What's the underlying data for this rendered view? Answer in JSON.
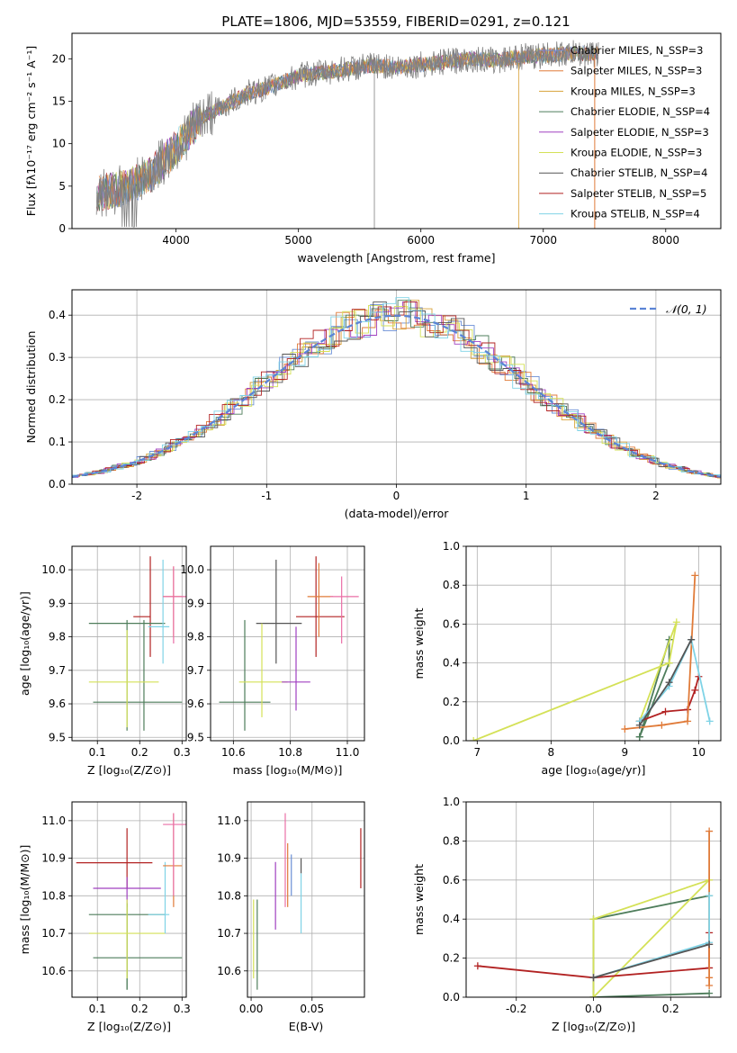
{
  "figure": {
    "title": "PLATE=1806, MJD=53559, FIBERID=0291, z=0.121"
  },
  "chart_data": [
    {
      "id": "spectrum",
      "type": "line",
      "xlabel": "wavelength [Angstrom, rest frame]",
      "ylabel": "Flux [fλ10⁻¹⁷ erg cm⁻² s⁻¹ A⁻¹]",
      "xlim": [
        3150,
        8450
      ],
      "ylim": [
        0,
        23
      ],
      "xticks": [
        4000,
        5000,
        6000,
        7000,
        8000
      ],
      "yticks": [
        0,
        5,
        10,
        15,
        20
      ],
      "legend_position": "top-right",
      "series": [
        {
          "name": "Chabrier MILES, N_SSP=3",
          "color": "#6b8fd6"
        },
        {
          "name": "Salpeter MILES, N_SSP=3",
          "color": "#e07b39"
        },
        {
          "name": "Kroupa MILES, N_SSP=3",
          "color": "#d8a23a"
        },
        {
          "name": "Chabrier ELODIE, N_SSP=4",
          "color": "#4e7d5b"
        },
        {
          "name": "Salpeter ELODIE, N_SSP=3",
          "color": "#a040c0"
        },
        {
          "name": "Kroupa ELODIE, N_SSP=3",
          "color": "#d4e157"
        },
        {
          "name": "Chabrier STELIB, N_SSP=4",
          "color": "#555555"
        },
        {
          "name": "Salpeter STELIB, N_SSP=5",
          "color": "#b22222"
        },
        {
          "name": "Kroupa STELIB, N_SSP=4",
          "color": "#7fd3e6"
        }
      ],
      "data_trend": {
        "x": [
          3400,
          3600,
          3800,
          4000,
          4200,
          4400,
          4600,
          4800,
          5000,
          5200,
          5400,
          5600,
          5800,
          6000,
          6200,
          6400,
          6600,
          6800,
          7000,
          7200
        ],
        "y": [
          4.3,
          4.8,
          6.5,
          9.5,
          13.0,
          14.5,
          16.0,
          16.8,
          18.0,
          18.4,
          18.8,
          19.2,
          19.0,
          19.3,
          19.6,
          20.0,
          19.8,
          20.2,
          20.4,
          20.6
        ]
      }
    },
    {
      "id": "residuals",
      "type": "line",
      "xlabel": "(data-model)/error",
      "ylabel": "Normed distribution",
      "xlim": [
        -2.5,
        2.5
      ],
      "ylim": [
        0,
        0.46
      ],
      "xticks": [
        -2,
        -1,
        0,
        1,
        2
      ],
      "yticks": [
        0.0,
        0.1,
        0.2,
        0.3,
        0.4
      ],
      "grid": true,
      "reference_curve": {
        "name": "𝒩(0, 1)",
        "mean": 0,
        "sigma": 1,
        "color": "#5b84d6"
      },
      "legend_position": "top-right"
    },
    {
      "id": "age_vs_Z",
      "type": "scatter",
      "xlabel": "Z [log₁₀(Z/Z⊙)]",
      "ylabel": "age  [log₁₀(age/yr)]",
      "xlim": [
        0.04,
        0.31
      ],
      "ylim": [
        9.49,
        10.07
      ],
      "xticks": [
        0.1,
        0.2,
        0.3
      ],
      "yticks": [
        9.5,
        9.6,
        9.7,
        9.8,
        9.9,
        10.0
      ],
      "grid": true,
      "points": [
        {
          "x": 0.225,
          "y": 9.86,
          "xerr": [
            0.185,
            0.225
          ],
          "yerr": [
            9.74,
            10.04
          ],
          "color": "#b22222"
        },
        {
          "x": 0.17,
          "y": 9.84,
          "xerr": [
            0.08,
            0.26
          ],
          "yerr": [
            9.52,
            9.85
          ],
          "color": "#4e7d5b"
        },
        {
          "x": 0.21,
          "y": 9.605,
          "xerr": [
            0.09,
            0.3
          ],
          "yerr": [
            9.52,
            9.85
          ],
          "color": "#4e7d5b"
        },
        {
          "x": 0.17,
          "y": 9.665,
          "xerr": [
            0.08,
            0.245
          ],
          "yerr": [
            9.53,
            9.82
          ],
          "color": "#d4e157"
        },
        {
          "x": 0.255,
          "y": 9.83,
          "xerr": [
            0.22,
            0.27
          ],
          "yerr": [
            9.72,
            10.03
          ],
          "color": "#7fd3e6"
        },
        {
          "x": 0.28,
          "y": 9.92,
          "xerr": [
            0.255,
            0.3
          ],
          "yerr": [
            9.8,
            10.01
          ],
          "color": "#e07b39"
        },
        {
          "x": 0.28,
          "y": 9.92,
          "xerr": [
            0.255,
            0.31
          ],
          "yerr": [
            9.78,
            10.01
          ],
          "color": "#ea6fa6"
        }
      ]
    },
    {
      "id": "age_vs_mass",
      "type": "scatter",
      "xlabel": "mass [log₁₀(M/M⊙)]",
      "ylabel": "",
      "xlim": [
        10.52,
        11.06
      ],
      "ylim": [
        9.49,
        10.07
      ],
      "xticks": [
        10.6,
        10.8,
        11.0
      ],
      "yticks": [
        9.5,
        9.6,
        9.7,
        9.8,
        9.9,
        10.0
      ],
      "grid": true,
      "points": [
        {
          "x": 10.89,
          "y": 9.86,
          "xerr": [
            10.82,
            10.99
          ],
          "yerr": [
            9.74,
            10.04
          ],
          "color": "#b22222"
        },
        {
          "x": 10.75,
          "y": 9.84,
          "xerr": [
            10.68,
            10.84
          ],
          "yerr": [
            9.72,
            10.03
          ],
          "color": "#555555"
        },
        {
          "x": 10.64,
          "y": 9.605,
          "xerr": [
            10.55,
            10.73
          ],
          "yerr": [
            9.52,
            9.85
          ],
          "color": "#4e7d5b"
        },
        {
          "x": 10.7,
          "y": 9.665,
          "xerr": [
            10.62,
            10.79
          ],
          "yerr": [
            9.56,
            9.84
          ],
          "color": "#d4e157"
        },
        {
          "x": 10.82,
          "y": 9.665,
          "xerr": [
            10.77,
            10.87
          ],
          "yerr": [
            9.58,
            9.83
          ],
          "color": "#a040c0"
        },
        {
          "x": 10.9,
          "y": 9.92,
          "xerr": [
            10.86,
            10.95
          ],
          "yerr": [
            9.8,
            10.02
          ],
          "color": "#e07b39"
        },
        {
          "x": 10.98,
          "y": 9.92,
          "xerr": [
            10.94,
            11.04
          ],
          "yerr": [
            9.78,
            9.98
          ],
          "color": "#ea6fa6"
        }
      ]
    },
    {
      "id": "weight_vs_age",
      "type": "line",
      "xlabel": "age  [log₁₀(age/yr)]",
      "ylabel": "mass weight",
      "xlim": [
        6.85,
        10.3
      ],
      "ylim": [
        0,
        1.0
      ],
      "xticks": [
        7,
        8,
        9,
        10
      ],
      "yticks": [
        0.0,
        0.2,
        0.4,
        0.6,
        0.8,
        1.0
      ],
      "grid": true,
      "series": [
        {
          "color": "#4e7d5b",
          "x": [
            9.2,
            9.6,
            9.6,
            9.2
          ],
          "y": [
            0.02,
            0.52,
            0.4,
            0.02
          ]
        },
        {
          "color": "#d4e157",
          "x": [
            6.95,
            9.6,
            9.7,
            9.2
          ],
          "y": [
            0.0,
            0.4,
            0.61,
            0.1
          ]
        },
        {
          "color": "#b22222",
          "x": [
            9.2,
            9.55,
            9.85,
            9.95,
            10.0
          ],
          "y": [
            0.1,
            0.15,
            0.16,
            0.26,
            0.33
          ]
        },
        {
          "color": "#e07b39",
          "x": [
            9.0,
            9.5,
            9.85,
            9.95
          ],
          "y": [
            0.06,
            0.08,
            0.1,
            0.85
          ]
        },
        {
          "color": "#7fd3e6",
          "x": [
            9.2,
            9.6,
            9.9,
            10.15
          ],
          "y": [
            0.1,
            0.28,
            0.52,
            0.1
          ]
        },
        {
          "color": "#555555",
          "x": [
            9.2,
            9.6,
            9.9
          ],
          "y": [
            0.08,
            0.3,
            0.52
          ]
        }
      ]
    },
    {
      "id": "mass_vs_Z",
      "type": "scatter",
      "xlabel": "Z [log₁₀(Z/Z⊙)]",
      "ylabel": "mass [log₁₀(M/M⊙)]",
      "xlim": [
        0.04,
        0.31
      ],
      "ylim": [
        10.53,
        11.05
      ],
      "xticks": [
        0.1,
        0.2,
        0.3
      ],
      "yticks": [
        10.6,
        10.7,
        10.8,
        10.9,
        11.0
      ],
      "grid": true,
      "points": [
        {
          "x": 0.17,
          "y": 10.888,
          "xerr": [
            0.05,
            0.23
          ],
          "yerr": [
            10.82,
            10.98
          ],
          "color": "#b22222"
        },
        {
          "x": 0.17,
          "y": 10.82,
          "xerr": [
            0.09,
            0.25
          ],
          "yerr": [
            10.77,
            10.85
          ],
          "color": "#a040c0"
        },
        {
          "x": 0.17,
          "y": 10.75,
          "xerr": [
            0.08,
            0.26
          ],
          "yerr": [
            10.55,
            10.78
          ],
          "color": "#4e7d5b"
        },
        {
          "x": 0.17,
          "y": 10.635,
          "xerr": [
            0.09,
            0.3
          ],
          "yerr": [
            10.55,
            10.78
          ],
          "color": "#4e7d5b"
        },
        {
          "x": 0.17,
          "y": 10.7,
          "xerr": [
            0.08,
            0.26
          ],
          "yerr": [
            10.58,
            10.79
          ],
          "color": "#d4e157"
        },
        {
          "x": 0.26,
          "y": 10.75,
          "xerr": [
            0.22,
            0.27
          ],
          "yerr": [
            10.7,
            10.89
          ],
          "color": "#7fd3e6"
        },
        {
          "x": 0.28,
          "y": 10.88,
          "xerr": [
            0.255,
            0.3
          ],
          "yerr": [
            10.77,
            11.02
          ],
          "color": "#e07b39"
        },
        {
          "x": 0.28,
          "y": 10.99,
          "xerr": [
            0.255,
            0.31
          ],
          "yerr": [
            10.8,
            11.02
          ],
          "color": "#ea6fa6"
        }
      ]
    },
    {
      "id": "mass_vs_ebv",
      "type": "scatter",
      "xlabel": "E(B-V)",
      "ylabel": "",
      "xlim": [
        -0.003,
        0.093
      ],
      "ylim": [
        10.53,
        11.05
      ],
      "xticks": [
        0.0,
        0.05
      ],
      "yticks": [
        10.6,
        10.7,
        10.8,
        10.9,
        11.0
      ],
      "grid": true,
      "points": [
        {
          "x": 0.09,
          "yerr": [
            10.82,
            10.98
          ],
          "color": "#b22222"
        },
        {
          "x": 0.005,
          "yerr": [
            10.55,
            10.79
          ],
          "color": "#4e7d5b"
        },
        {
          "x": 0.002,
          "yerr": [
            10.58,
            10.79
          ],
          "color": "#d4e157"
        },
        {
          "x": 0.02,
          "yerr": [
            10.71,
            10.89
          ],
          "color": "#a040c0"
        },
        {
          "x": 0.028,
          "yerr": [
            10.77,
            11.02
          ],
          "color": "#ea6fa6"
        },
        {
          "x": 0.03,
          "yerr": [
            10.77,
            10.94
          ],
          "color": "#e07b39"
        },
        {
          "x": 0.033,
          "yerr": [
            10.8,
            10.91
          ],
          "color": "#6b8fd6"
        },
        {
          "x": 0.041,
          "yerr": [
            10.7,
            10.86
          ],
          "color": "#7fd3e6"
        },
        {
          "x": 0.041,
          "yerr": [
            10.86,
            10.9
          ],
          "color": "#555555"
        }
      ]
    },
    {
      "id": "weight_vs_Z",
      "type": "line",
      "xlabel": "Z [log₁₀(Z/Z⊙)]",
      "ylabel": "mass weight",
      "xlim": [
        -0.33,
        0.33
      ],
      "ylim": [
        0,
        1.0
      ],
      "xticks": [
        -0.2,
        0.0,
        0.2
      ],
      "yticks": [
        0.0,
        0.2,
        0.4,
        0.6,
        0.8,
        1.0
      ],
      "grid": true,
      "series": [
        {
          "color": "#4e7d5b",
          "x": [
            0.3,
            0.0,
            0.0,
            0.3
          ],
          "y": [
            0.02,
            0.0,
            0.4,
            0.52
          ]
        },
        {
          "color": "#d4e157",
          "x": [
            0.0,
            0.0,
            0.3,
            0.0
          ],
          "y": [
            0.0,
            0.4,
            0.6,
            0.0
          ]
        },
        {
          "color": "#b22222",
          "x": [
            -0.3,
            0.0,
            0.3,
            0.3,
            0.3
          ],
          "y": [
            0.16,
            0.1,
            0.15,
            0.27,
            0.33
          ]
        },
        {
          "color": "#e07b39",
          "x": [
            0.3,
            0.3,
            0.3
          ],
          "y": [
            0.06,
            0.1,
            0.85
          ]
        },
        {
          "color": "#7fd3e6",
          "x": [
            0.0,
            0.3,
            0.3
          ],
          "y": [
            0.1,
            0.28,
            0.52
          ]
        },
        {
          "color": "#555555",
          "x": [
            0.0,
            0.3
          ],
          "y": [
            0.1,
            0.27
          ]
        }
      ]
    }
  ]
}
